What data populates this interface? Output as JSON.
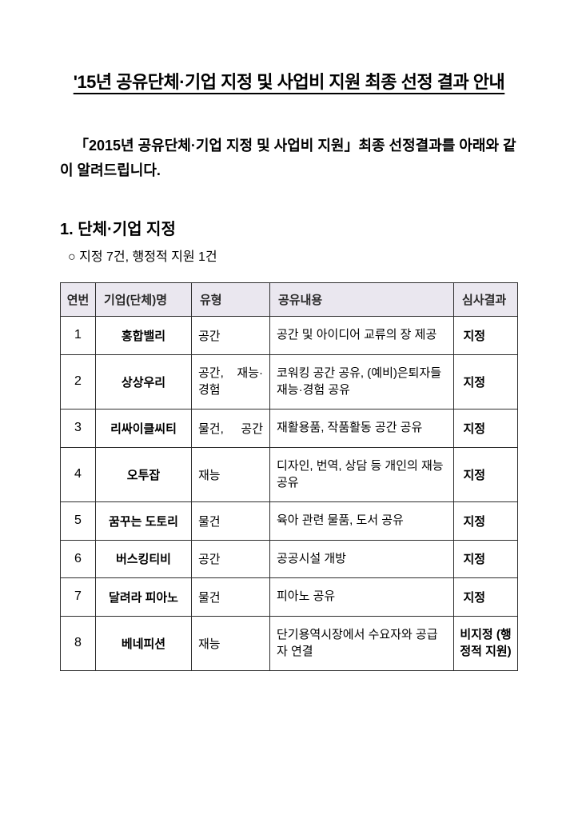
{
  "title": "'15년 공유단체·기업 지정 및 사업비 지원 최종 선정 결과 안내",
  "intro": "「2015년 공유단체·기업 지정 및 사업비 지원」최종 선정결과를 아래와 같이 알려드립니다.",
  "section": {
    "heading": "1. 단체·기업 지정",
    "sub_note": "○ 지정 7건, 행정적 지원 1건"
  },
  "table": {
    "columns": {
      "num": "연번",
      "name": "기업(단체)명",
      "type": "유형",
      "content": "공유내용",
      "result": "심사결과"
    },
    "header_bg": "#eae7ef",
    "border_color": "#2d2d2d",
    "font_size_body": 15,
    "font_size_header": 15,
    "rows": [
      {
        "num": "1",
        "name": "홍합밸리",
        "type": "공간",
        "content": "공간 및 아이디어 교류의 장 제공",
        "result": "지정"
      },
      {
        "num": "2",
        "name": "상상우리",
        "type": "공간, 재능·경험",
        "content": "코워킹 공간 공유, (예비)은퇴자들 재능·경험 공유",
        "result": "지정"
      },
      {
        "num": "3",
        "name": "리싸이클씨티",
        "type": "물건, 공간",
        "content": "재활용품, 작품활동 공간 공유",
        "result": "지정"
      },
      {
        "num": "4",
        "name": "오투잡",
        "type": "재능",
        "content": "디자인, 번역, 상담 등 개인의 재능 공유",
        "result": "지정"
      },
      {
        "num": "5",
        "name": "꿈꾸는 도토리",
        "type": "물건",
        "content": "육아 관련 물품, 도서 공유",
        "result": "지정"
      },
      {
        "num": "6",
        "name": "버스킹티비",
        "type": "공간",
        "content": "공공시설 개방",
        "result": "지정"
      },
      {
        "num": "7",
        "name": "달려라 피아노",
        "type": "물건",
        "content": "피아노 공유",
        "result": "지정"
      },
      {
        "num": "8",
        "name": "베네피션",
        "type": "재능",
        "content": "단기용역시장에서 수요자와 공급자 연결",
        "result": "비지정 (행정적 지원)"
      }
    ]
  }
}
